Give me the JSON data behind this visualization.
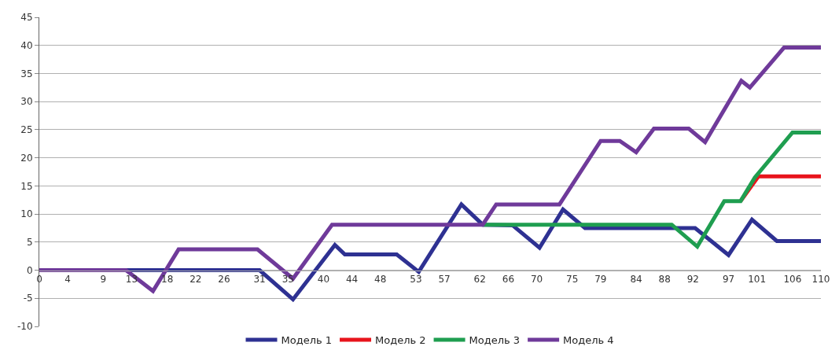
{
  "chart_data": {
    "type": "line",
    "xlim": [
      0,
      110
    ],
    "xticks": [
      0,
      4,
      9,
      13,
      18,
      22,
      26,
      31,
      35,
      40,
      44,
      48,
      53,
      57,
      62,
      66,
      70,
      75,
      79,
      84,
      88,
      92,
      97,
      101,
      106,
      110
    ],
    "ylim": [
      -10,
      45
    ],
    "yticks": [
      -10,
      -5,
      0,
      5,
      10,
      15,
      20,
      25,
      30,
      35,
      40,
      45
    ],
    "grid": "y",
    "legend": "bottom",
    "marker": "none",
    "line_style": "solid",
    "series": [
      {
        "name": "Модель 1",
        "color": "#2e3192",
        "x": [
          0,
          31,
          35.7,
          41.6,
          43,
          50.3,
          53.4,
          59.4,
          62.4,
          66.6,
          70.4,
          73.7,
          76.8,
          92.3,
          97,
          100.3,
          103.8,
          110
        ],
        "values": [
          0,
          0,
          -5.2,
          4.5,
          2.8,
          2.8,
          -0.3,
          11.7,
          8.1,
          8,
          4,
          10.8,
          7.5,
          7.5,
          2.7,
          9,
          5.2,
          5.2
        ]
      },
      {
        "name": "Модель 2",
        "color": "#e8141c",
        "x": [
          98.7,
          101.2,
          110
        ],
        "values": [
          12.3,
          16.7,
          16.7
        ]
      },
      {
        "name": "Модель 3",
        "color": "#1f9e50",
        "x": [
          62.4,
          89,
          92.6,
          96.4,
          98.7,
          100.7,
          106,
          110
        ],
        "values": [
          8.1,
          8.1,
          4.2,
          12.3,
          12.3,
          16.5,
          24.5,
          24.5
        ]
      },
      {
        "name": "Модель 4",
        "color": "#6f3a9a",
        "x": [
          0,
          12.2,
          16,
          19.6,
          30.7,
          35.7,
          41.2,
          62.4,
          64.3,
          73.2,
          79,
          81.7,
          84,
          86.5,
          91.4,
          93.7,
          98.8,
          100,
          104.8,
          110
        ],
        "values": [
          0,
          0,
          -3.7,
          3.7,
          3.7,
          -1.5,
          8.1,
          8.1,
          11.7,
          11.7,
          23,
          23,
          21,
          25.2,
          25.2,
          22.8,
          33.7,
          32.5,
          39.6,
          39.6
        ]
      }
    ]
  }
}
